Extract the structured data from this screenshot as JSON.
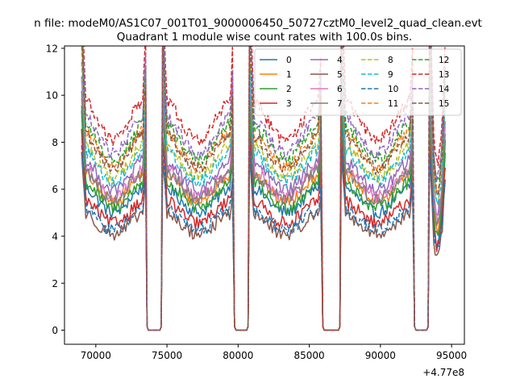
{
  "figure": {
    "suptitle": "n file: modeM0/AS1C07_001T01_9000006450_50727cztM0_level2_quad_clean.evt"
  },
  "chart_data": {
    "type": "line",
    "title": "Quadrant 1 module wise count rates with 100.0s bins.",
    "xlabel": "",
    "ylabel": "",
    "x_offset_label": "+4.77e8",
    "xlim": [
      67800,
      95900
    ],
    "ylim": [
      -0.6,
      12.1
    ],
    "xticks": [
      70000,
      75000,
      80000,
      85000,
      90000,
      95000
    ],
    "yticks": [
      0,
      2,
      4,
      6,
      8,
      10,
      12
    ],
    "legend_position": "top-right",
    "legend_columns": 4,
    "segments": [
      [
        69000,
        73500
      ],
      [
        74700,
        79650
      ],
      [
        80800,
        85850
      ],
      [
        87250,
        92300
      ],
      [
        93450,
        94550
      ]
    ],
    "gaps": [
      [
        73600,
        74600
      ],
      [
        79750,
        80700
      ],
      [
        85950,
        87150
      ],
      [
        92400,
        93350
      ]
    ],
    "series": [
      {
        "name": "0",
        "color": "#1f77b4",
        "dash": "solid",
        "baseline": 5.4,
        "dip": 1.5
      },
      {
        "name": "1",
        "color": "#ff7f0e",
        "dash": "solid",
        "baseline": 5.9,
        "dip": 1.2
      },
      {
        "name": "2",
        "color": "#2ca02c",
        "dash": "solid",
        "baseline": 5.6,
        "dip": 1.2
      },
      {
        "name": "3",
        "color": "#d62728",
        "dash": "solid",
        "baseline": 4.9,
        "dip": 1.0
      },
      {
        "name": "4",
        "color": "#9467bd",
        "dash": "solid",
        "baseline": 6.4,
        "dip": 1.0
      },
      {
        "name": "5",
        "color": "#8c564b",
        "dash": "solid",
        "baseline": 4.4,
        "dip": 1.0
      },
      {
        "name": "6",
        "color": "#e377c2",
        "dash": "solid",
        "baseline": 6.1,
        "dip": 1.0
      },
      {
        "name": "7",
        "color": "#7f7f7f",
        "dash": "solid",
        "baseline": 6.0,
        "dip": 1.0
      },
      {
        "name": "8",
        "color": "#bcbd22",
        "dash": "dashed",
        "baseline": 7.0,
        "dip": 1.0
      },
      {
        "name": "9",
        "color": "#17becf",
        "dash": "dashed",
        "baseline": 6.8,
        "dip": 1.0
      },
      {
        "name": "10",
        "color": "#1f77b4",
        "dash": "dashed",
        "baseline": 4.6,
        "dip": 1.0
      },
      {
        "name": "11",
        "color": "#ff7f0e",
        "dash": "dashed",
        "baseline": 7.5,
        "dip": 1.0
      },
      {
        "name": "12",
        "color": "#2ca02c",
        "dash": "dashed",
        "baseline": 7.8,
        "dip": 1.0
      },
      {
        "name": "13",
        "color": "#d62728",
        "dash": "dashed",
        "baseline": 8.7,
        "dip": 1.0
      },
      {
        "name": "14",
        "color": "#9467bd",
        "dash": "dashed",
        "baseline": 8.1,
        "dip": 1.0
      },
      {
        "name": "15",
        "color": "#8c564b",
        "dash": "dashed",
        "baseline": 7.4,
        "dip": 1.0
      }
    ]
  }
}
